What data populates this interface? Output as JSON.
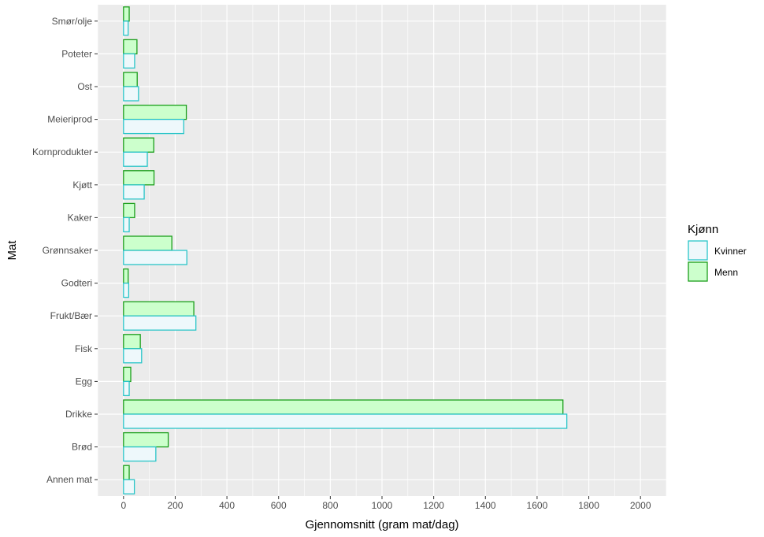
{
  "chart_data": {
    "type": "bar",
    "orientation": "horizontal",
    "categories": [
      "Annen mat",
      "Brød",
      "Drikke",
      "Egg",
      "Fisk",
      "Frukt/Bær",
      "Godteri",
      "Grønnsaker",
      "Kaker",
      "Kjøtt",
      "Kornprodukter",
      "Meieriprod",
      "Ost",
      "Poteter",
      "Smør/olje"
    ],
    "series": [
      {
        "name": "Kvinner",
        "fill": "#eef8fb",
        "stroke": "#29c5c8",
        "values": [
          42,
          125,
          1715,
          22,
          70,
          280,
          20,
          245,
          22,
          80,
          92,
          233,
          58,
          43,
          18
        ]
      },
      {
        "name": "Menn",
        "fill": "#ccffcc",
        "stroke": "#1b9e1b",
        "values": [
          22,
          173,
          1700,
          28,
          65,
          272,
          18,
          187,
          43,
          118,
          117,
          243,
          53,
          52,
          22
        ]
      }
    ],
    "xlabel": "Gjennomsnitt (gram mat/dag)",
    "ylabel": "Mat",
    "xlim": [
      -100,
      2100
    ],
    "xticks": [
      0,
      200,
      400,
      600,
      800,
      1000,
      1200,
      1400,
      1600,
      1800,
      2000
    ],
    "legend_title": "Kjønn",
    "legend_position": "right",
    "grid": true,
    "panel_background": "#ebebeb"
  }
}
